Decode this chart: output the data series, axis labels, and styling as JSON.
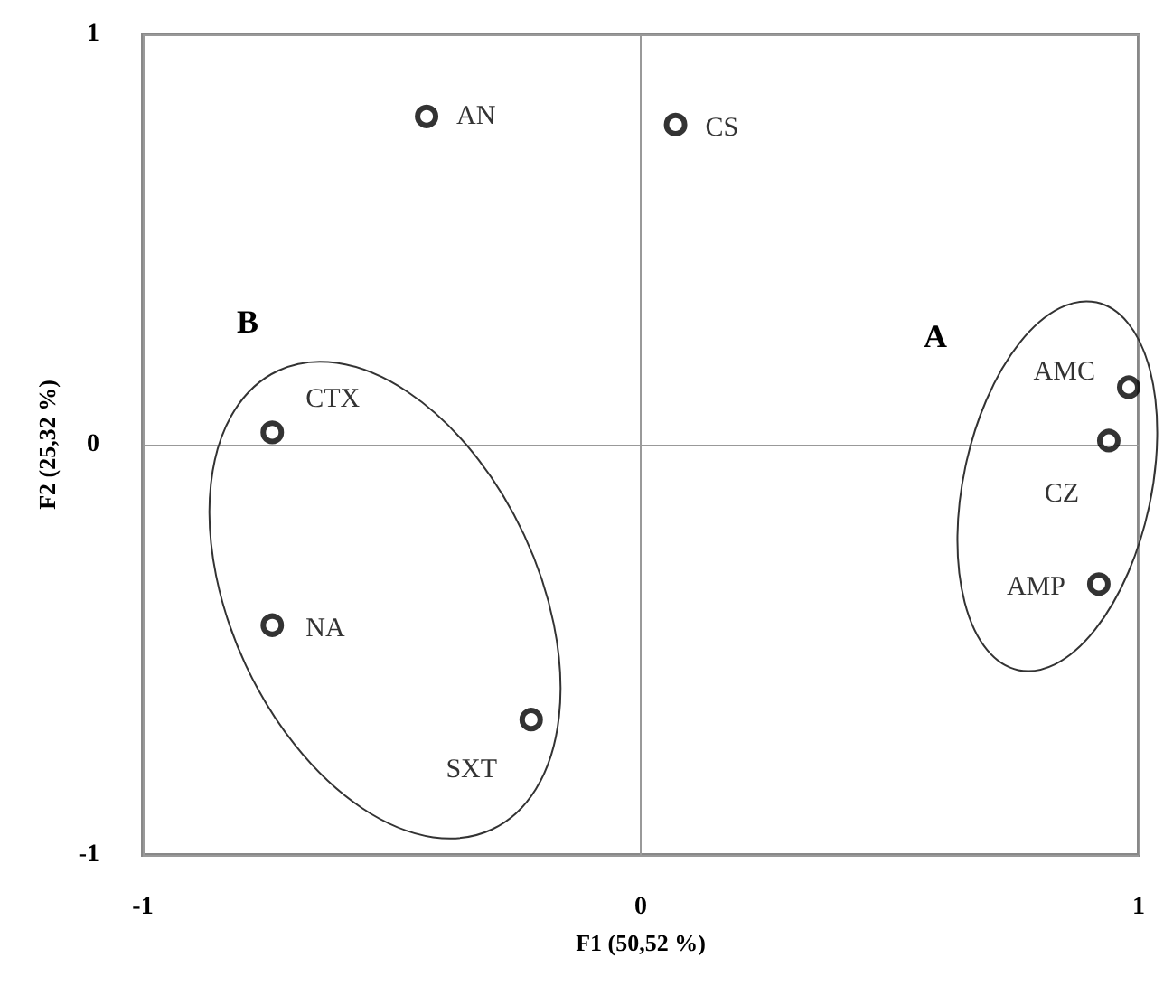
{
  "chart_data": {
    "type": "scatter",
    "xlabel": "F1 (50,52 %)",
    "ylabel": "F2 (25,32 %)",
    "xlim": [
      -1,
      1
    ],
    "ylim": [
      -1,
      1
    ],
    "xticks": [
      -1,
      0,
      1
    ],
    "yticks": [
      -1,
      0,
      1
    ],
    "grid": true,
    "legend": false,
    "marker": "circle",
    "series": [
      {
        "name": "AN",
        "color": "#000000",
        "x": [
          -0.43
        ],
        "values": [
          0.8
        ]
      },
      {
        "name": "CS",
        "color": "#000000",
        "x": [
          0.07
        ],
        "values": [
          0.78
        ]
      },
      {
        "name": "CTX",
        "color": "#000000",
        "x": [
          -0.74
        ],
        "values": [
          0.03
        ]
      },
      {
        "name": "NA",
        "color": "#000000",
        "x": [
          -0.74
        ],
        "values": [
          -0.44
        ]
      },
      {
        "name": "SXT",
        "color": "#000000",
        "x": [
          -0.22
        ],
        "values": [
          -0.67
        ]
      },
      {
        "name": "AMC",
        "color": "#000000",
        "x": [
          0.98
        ],
        "values": [
          0.14
        ]
      },
      {
        "name": "CZ",
        "color": "#000000",
        "x": [
          0.94
        ],
        "values": [
          0.01
        ]
      },
      {
        "name": "AMP",
        "color": "#000000",
        "x": [
          0.92
        ],
        "values": [
          -0.34
        ]
      }
    ],
    "annotations": [
      "A",
      "B"
    ]
  }
}
